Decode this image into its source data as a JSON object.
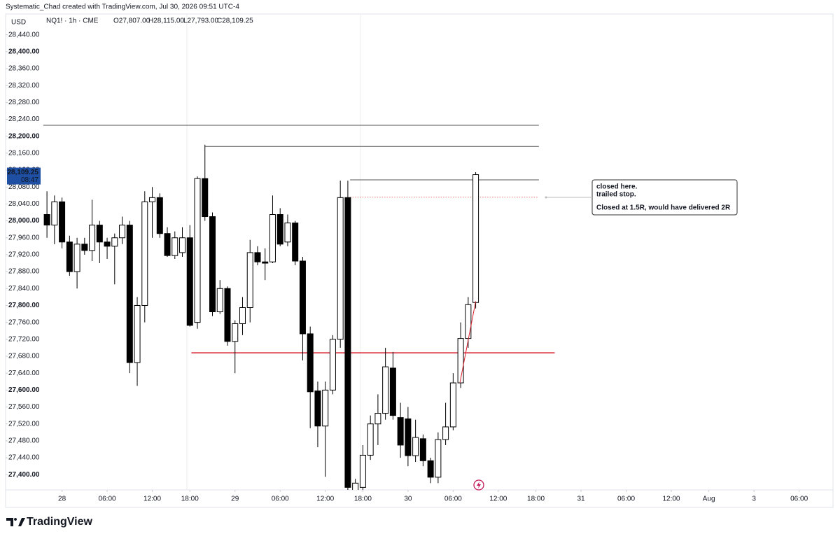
{
  "header": "Systematic_Chad created with TradingView.com, Jul 30, 2026 09:51 UTC-4",
  "legend": {
    "symbol": "NQ1! · 1h · CME",
    "open": "O27,807.00",
    "high": "H28,115.00",
    "low": "L27,793.00",
    "close": "C28,109.25"
  },
  "currency": "USD",
  "logo": "TradingView",
  "chart_data": {
    "type": "candlestick",
    "open": [
      28015,
      27990,
      28045,
      27950,
      27880,
      27945,
      27930,
      27990,
      27950,
      27940,
      27960,
      27990,
      27665,
      27800,
      28045,
      28055,
      27970,
      27918,
      27925,
      27960,
      27760,
      28100,
      28010,
      27785,
      27840,
      27715,
      27757,
      27795,
      27925,
      27903,
      27903,
      28015,
      27950,
      27995,
      27905,
      27733,
      27598,
      27515,
      27600,
      27720,
      28055,
      27350,
      27370,
      27446,
      27520,
      27545,
      27652,
      27535,
      27532,
      27445,
      27485,
      27433,
      27394,
      27483,
      27513,
      27617,
      27722,
      27807
    ],
    "high": [
      28070,
      28060,
      28055,
      27965,
      27960,
      27960,
      28050,
      28000,
      27960,
      27970,
      28010,
      28000,
      27820,
      28070,
      28080,
      28065,
      27985,
      27975,
      27985,
      27990,
      28105,
      28180,
      28020,
      27860,
      27845,
      27765,
      27820,
      27955,
      27940,
      27935,
      28060,
      28030,
      28015,
      28000,
      27915,
      27750,
      27620,
      27620,
      27730,
      28095,
      28095,
      27390,
      27470,
      27540,
      27590,
      27700,
      27690,
      27570,
      27560,
      27530,
      27495,
      27440,
      27500,
      27570,
      27640,
      27760,
      27820,
      28115
    ],
    "low": [
      27960,
      27945,
      27935,
      27870,
      27840,
      27920,
      27905,
      27900,
      27910,
      27850,
      27945,
      27640,
      27610,
      27760,
      27960,
      27960,
      27915,
      27910,
      27915,
      27750,
      27745,
      28000,
      27775,
      27780,
      27705,
      27640,
      27730,
      27760,
      27895,
      27860,
      27900,
      27940,
      27940,
      27895,
      27670,
      27510,
      27465,
      27395,
      27590,
      27700,
      27360,
      27330,
      27350,
      27435,
      27470,
      27530,
      27530,
      27440,
      27420,
      27430,
      27420,
      27380,
      27380,
      27470,
      27505,
      27605,
      27700,
      27793
    ],
    "close": [
      27990,
      28045,
      27950,
      27880,
      27945,
      27930,
      27990,
      27950,
      27940,
      27960,
      27990,
      27665,
      27800,
      28045,
      28055,
      27970,
      27918,
      27960,
      27960,
      27753,
      28100,
      28010,
      27785,
      27840,
      27715,
      27757,
      27795,
      27925,
      27903,
      27900,
      28015,
      27945,
      27995,
      27905,
      27733,
      27596,
      27515,
      27600,
      27720,
      28055,
      27370,
      27380,
      27446,
      27520,
      27545,
      27655,
      27540,
      27470,
      27445,
      27488,
      27433,
      27394,
      27483,
      27513,
      27617,
      27722,
      27802,
      28109.25
    ],
    "up_color": "#ffffff",
    "down_color": "#000000",
    "edge_color": "#000000",
    "ylim": [
      27364,
      28489
    ],
    "xlim": [
      -5.5,
      104.5
    ],
    "yticks": [
      {
        "value": 28440,
        "label": "28,440.00"
      },
      {
        "value": 28400,
        "label": "28,400.00"
      },
      {
        "value": 28360,
        "label": "28,360.00"
      },
      {
        "value": 28320,
        "label": "28,320.00"
      },
      {
        "value": 28280,
        "label": "28,280.00"
      },
      {
        "value": 28240,
        "label": "28,240.00"
      },
      {
        "value": 28200,
        "label": "28,200.00"
      },
      {
        "value": 28160,
        "label": "28,160.00"
      },
      {
        "value": 28120,
        "label": "28,120.00"
      },
      {
        "value": 28080,
        "label": "28,080.00"
      },
      {
        "value": 28040,
        "label": "28,040.00"
      },
      {
        "value": 28000,
        "label": "28,000.00"
      },
      {
        "value": 27960,
        "label": "27,960.00"
      },
      {
        "value": 27920,
        "label": "27,920.00"
      },
      {
        "value": 27880,
        "label": "27,880.00"
      },
      {
        "value": 27840,
        "label": "27,840.00"
      },
      {
        "value": 27800,
        "label": "27,800.00"
      },
      {
        "value": 27760,
        "label": "27,760.00"
      },
      {
        "value": 27720,
        "label": "27,720.00"
      },
      {
        "value": 27680,
        "label": "27,680.00"
      },
      {
        "value": 27640,
        "label": "27,640.00"
      },
      {
        "value": 27600,
        "label": "27,600.00"
      },
      {
        "value": 27560,
        "label": "27,560.00"
      },
      {
        "value": 27520,
        "label": "27,520.00"
      },
      {
        "value": 27480,
        "label": "27,480.00"
      },
      {
        "value": 27440,
        "label": "27,440.00"
      },
      {
        "value": 27400,
        "label": "27,400.00"
      }
    ],
    "xticks": [
      {
        "value": 2,
        "label": "28"
      },
      {
        "value": 8,
        "label": "06:00"
      },
      {
        "value": 14,
        "label": "12:00"
      },
      {
        "value": 19,
        "label": "18:00"
      },
      {
        "value": 25,
        "label": "29"
      },
      {
        "value": 31,
        "label": "06:00"
      },
      {
        "value": 37,
        "label": "12:00"
      },
      {
        "value": 42,
        "label": "18:00"
      },
      {
        "value": 48,
        "label": "30"
      },
      {
        "value": 54,
        "label": "06:00"
      },
      {
        "value": 60,
        "label": "12:00"
      },
      {
        "value": 65,
        "label": "18:00"
      },
      {
        "value": 71,
        "label": "31"
      },
      {
        "value": 77,
        "label": "06:00"
      },
      {
        "value": 83,
        "label": "12:00"
      },
      {
        "value": 88,
        "label": "Aug"
      },
      {
        "value": 94,
        "label": "3"
      },
      {
        "value": 100,
        "label": "06:00"
      }
    ],
    "session_lines": [
      18.6,
      41.7
    ],
    "levels": [
      {
        "value": 28226,
        "from": -0.5,
        "to": 65.4,
        "color": "#555555",
        "style": "solid"
      },
      {
        "value": 28176,
        "from": 21,
        "to": 65.4,
        "color": "#555555",
        "style": "solid"
      },
      {
        "value": 28097,
        "from": 40.3,
        "to": 65.4,
        "color": "#555555",
        "style": "solid"
      },
      {
        "value": 28056,
        "from": 40.3,
        "to": 65.4,
        "color": "#e57373",
        "style": "dotted"
      },
      {
        "value": 27688,
        "from": 19.2,
        "to": 67.5,
        "color": "#d81e2c",
        "style": "solid"
      }
    ],
    "trend_line": {
      "x": [
        54.9,
        57
      ],
      "y": [
        27617,
        27810
      ],
      "color": "#d81e2c"
    },
    "last_price": {
      "value": 28109.25,
      "label": "28,109.25",
      "countdown": "08:47",
      "color": "#1e4fa3"
    },
    "annotations": [
      "closed here.",
      "trailed stop.",
      "Closed at 1.5R, would have delivered 2R"
    ]
  }
}
